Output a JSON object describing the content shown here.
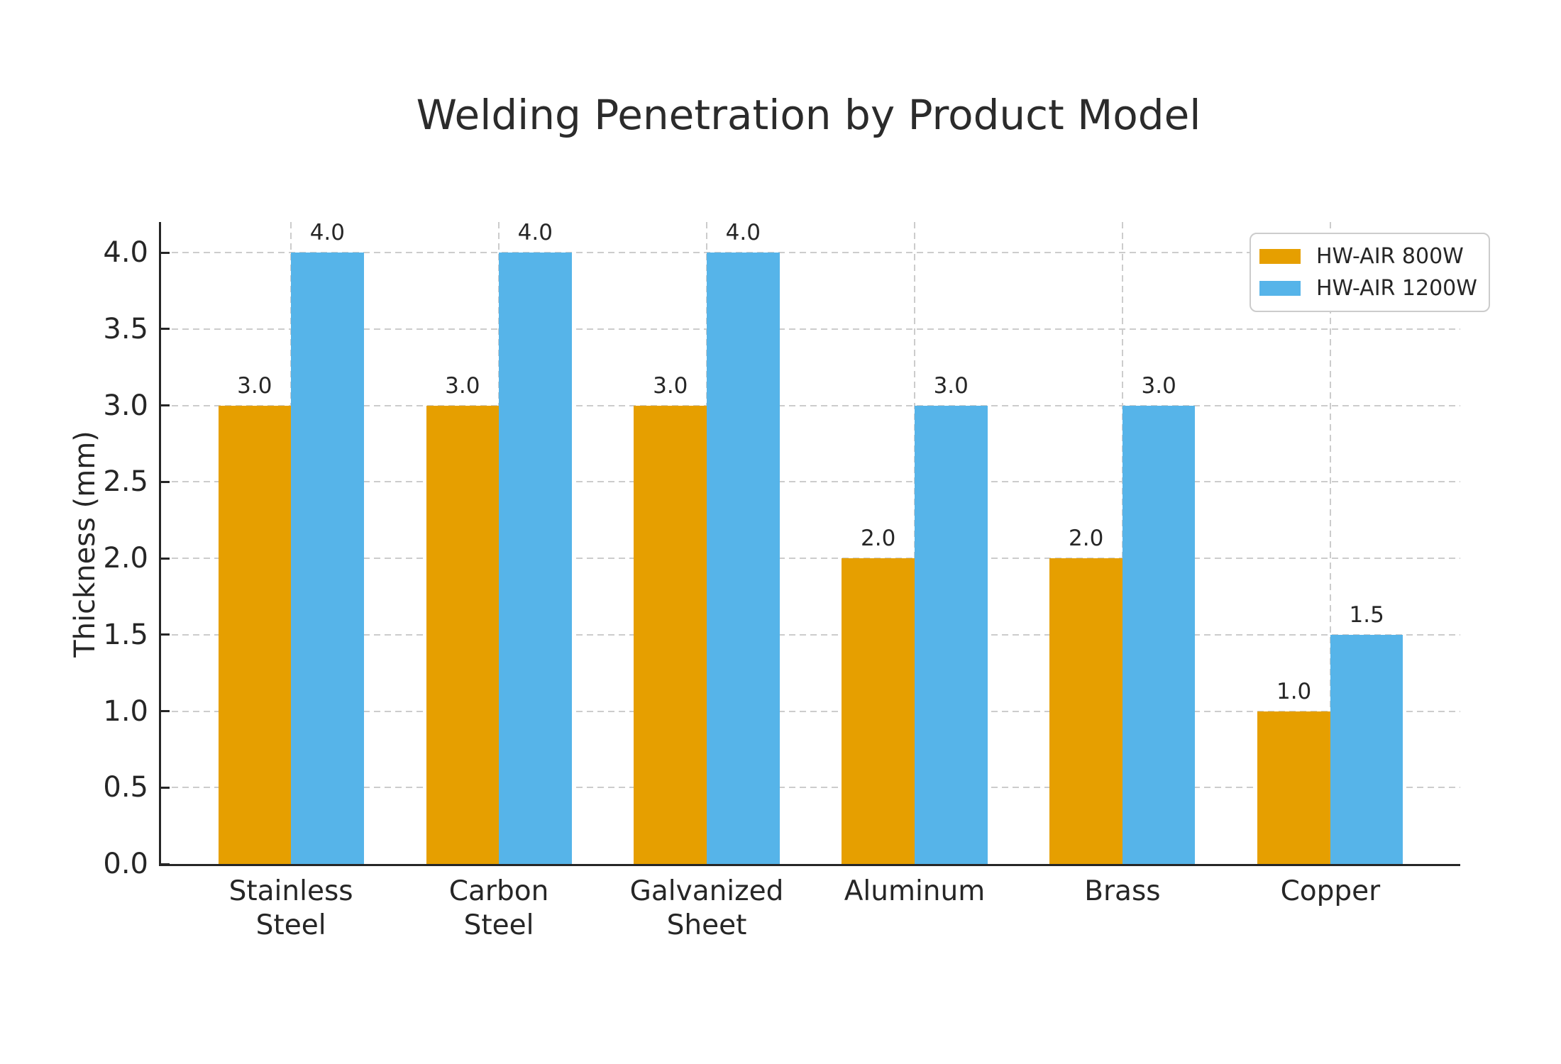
{
  "title": "Welding Penetration by Product Model",
  "chart_data": {
    "type": "bar",
    "title": "Welding Penetration by Product Model",
    "xlabel": "",
    "ylabel": "Thickness (mm)",
    "categories": [
      "Stainless\nSteel",
      "Carbon\nSteel",
      "Galvanized\nSheet",
      "Aluminum",
      "Brass",
      "Copper"
    ],
    "series": [
      {
        "name": "HW-AIR 800W",
        "color": "#E69F00",
        "values": [
          3.0,
          3.0,
          3.0,
          2.0,
          2.0,
          1.0
        ]
      },
      {
        "name": "HW-AIR 1200W",
        "color": "#56B4E9",
        "values": [
          4.0,
          4.0,
          4.0,
          3.0,
          3.0,
          1.5
        ]
      }
    ],
    "ylim": [
      0,
      4.2
    ],
    "yticks": [
      0.0,
      0.5,
      1.0,
      1.5,
      2.0,
      2.5,
      3.0,
      3.5,
      4.0
    ],
    "y_tick_labels": [
      "0.0",
      "0.5",
      "1.0",
      "1.5",
      "2.0",
      "2.5",
      "3.0",
      "3.5",
      "4.0"
    ],
    "bar_value_labels": [
      [
        "3.0",
        "3.0",
        "3.0",
        "2.0",
        "2.0",
        "1.0"
      ],
      [
        "4.0",
        "4.0",
        "4.0",
        "3.0",
        "3.0",
        "1.5"
      ]
    ],
    "grid": true,
    "grid_style": "dashed",
    "legend_position": "upper right",
    "bar_width_fraction": 0.35
  },
  "colors": {
    "series_800w": "#E69F00",
    "series_1200w": "#56B4E9",
    "spine": "#262626",
    "grid": "#cccccc",
    "text": "#262626",
    "legend_border": "#cccccc",
    "background": "#ffffff"
  }
}
